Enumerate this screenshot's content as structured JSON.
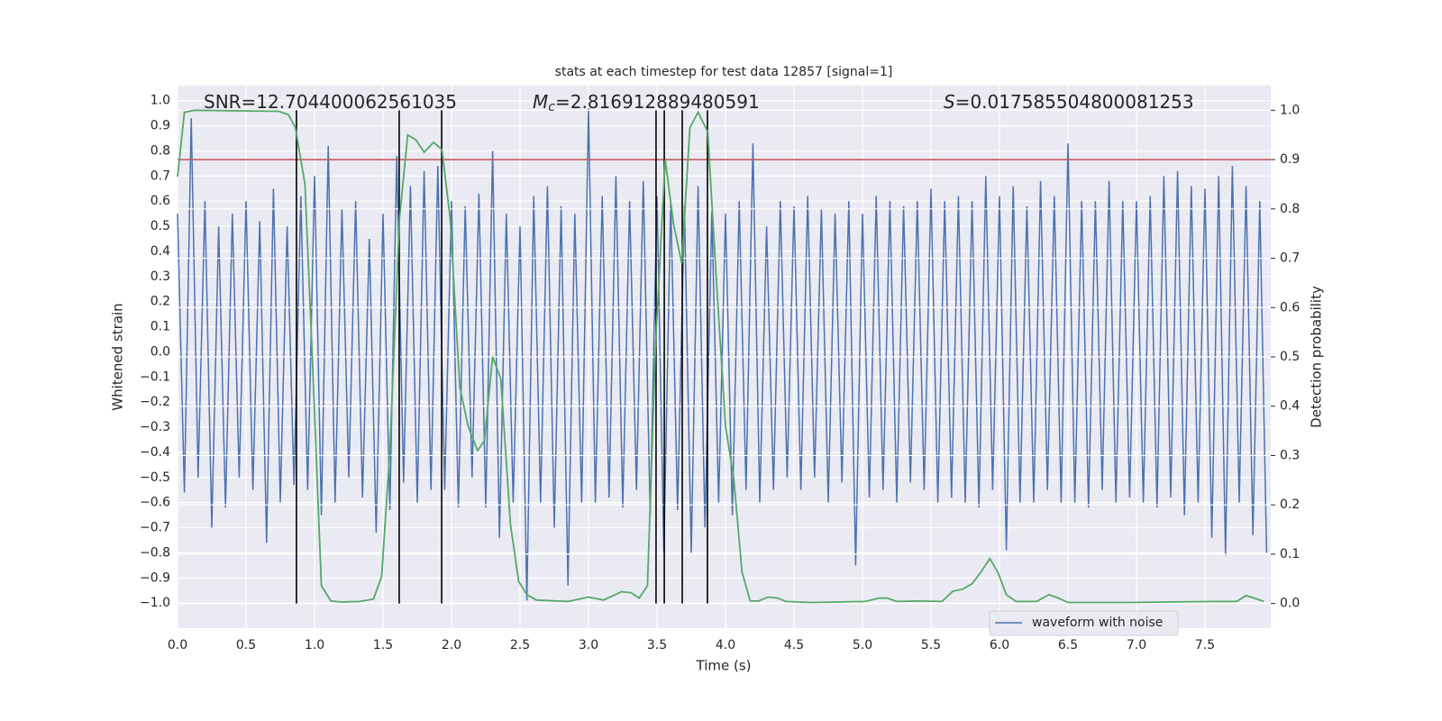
{
  "chart_data": {
    "type": "line",
    "title": "stats at each timestep for test data 12857 [signal=1]",
    "xlabel": "Time (s)",
    "ylabel": "Whitened strain",
    "y2label": "Detection probability",
    "annotations": [
      {
        "text": "SNR=12.704400062561035"
      },
      {
        "symbol": "M",
        "subscript": "c",
        "text": "=2.816912889480591"
      },
      {
        "symbol": "S",
        "text": "=0.017585504800081253"
      }
    ],
    "xlim": [
      0,
      7.98
    ],
    "ylim": [
      -1.1,
      1.06
    ],
    "y2lim": [
      -0.05,
      1.05
    ],
    "xticks": [
      {
        "value": 0,
        "label": "0.0"
      },
      {
        "value": 0.5,
        "label": "0.5"
      },
      {
        "value": 1,
        "label": "1.0"
      },
      {
        "value": 1.5,
        "label": "1.5"
      },
      {
        "value": 2,
        "label": "2.0"
      },
      {
        "value": 2.5,
        "label": "2.5"
      },
      {
        "value": 3,
        "label": "3.0"
      },
      {
        "value": 3.5,
        "label": "3.5"
      },
      {
        "value": 4,
        "label": "4.0"
      },
      {
        "value": 4.5,
        "label": "4.5"
      },
      {
        "value": 5,
        "label": "5.0"
      },
      {
        "value": 5.5,
        "label": "5.5"
      },
      {
        "value": 6,
        "label": "6.0"
      },
      {
        "value": 6.5,
        "label": "6.5"
      },
      {
        "value": 7,
        "label": "7.0"
      },
      {
        "value": 7.5,
        "label": "7.5"
      }
    ],
    "yticks": [
      {
        "value": -1,
        "label": "−1.0"
      },
      {
        "value": -0.9,
        "label": "−0.9"
      },
      {
        "value": -0.8,
        "label": "−0.8"
      },
      {
        "value": -0.7,
        "label": "−0.7"
      },
      {
        "value": -0.6,
        "label": "−0.6"
      },
      {
        "value": -0.5,
        "label": "−0.5"
      },
      {
        "value": -0.4,
        "label": "−0.4"
      },
      {
        "value": -0.3,
        "label": "−0.3"
      },
      {
        "value": -0.2,
        "label": "−0.2"
      },
      {
        "value": -0.1,
        "label": "−0.1"
      },
      {
        "value": 0,
        "label": "0.0"
      },
      {
        "value": 0.1,
        "label": "0.1"
      },
      {
        "value": 0.2,
        "label": "0.2"
      },
      {
        "value": 0.3,
        "label": "0.3"
      },
      {
        "value": 0.4,
        "label": "0.4"
      },
      {
        "value": 0.5,
        "label": "0.5"
      },
      {
        "value": 0.6,
        "label": "0.6"
      },
      {
        "value": 0.7,
        "label": "0.7"
      },
      {
        "value": 0.8,
        "label": "0.8"
      },
      {
        "value": 0.9,
        "label": "0.9"
      },
      {
        "value": 1,
        "label": "1.0"
      }
    ],
    "y2ticks": [
      {
        "value": 0,
        "label": "0.0"
      },
      {
        "value": 0.1,
        "label": "0.1"
      },
      {
        "value": 0.2,
        "label": "0.2"
      },
      {
        "value": 0.3,
        "label": "0.3"
      },
      {
        "value": 0.4,
        "label": "0.4"
      },
      {
        "value": 0.5,
        "label": "0.5"
      },
      {
        "value": 0.6,
        "label": "0.6"
      },
      {
        "value": 0.7,
        "label": "0.7"
      },
      {
        "value": 0.8,
        "label": "0.8"
      },
      {
        "value": 0.9,
        "label": "0.9"
      },
      {
        "value": 1,
        "label": "1.0"
      }
    ],
    "grid": true,
    "series": [
      {
        "name": "waveform with noise",
        "color": "#4c72b0",
        "x": [
          0,
          0.05,
          0.1,
          0.15,
          0.2,
          0.25,
          0.3,
          0.35,
          0.4,
          0.45,
          0.5,
          0.55,
          0.6,
          0.65,
          0.7,
          0.75,
          0.8,
          0.85,
          0.9,
          0.95,
          1,
          1.05,
          1.1,
          1.15,
          1.2,
          1.25,
          1.3,
          1.35,
          1.4,
          1.45,
          1.5,
          1.55,
          1.6,
          1.65,
          1.7,
          1.75,
          1.8,
          1.85,
          1.9,
          1.95,
          2,
          2.05,
          2.1,
          2.15,
          2.2,
          2.25,
          2.3,
          2.35,
          2.4,
          2.45,
          2.5,
          2.55,
          2.6,
          2.65,
          2.7,
          2.75,
          2.8,
          2.85,
          2.9,
          2.95,
          3,
          3.05,
          3.1,
          3.15,
          3.2,
          3.25,
          3.3,
          3.35,
          3.4,
          3.45,
          3.5,
          3.55,
          3.6,
          3.65,
          3.7,
          3.75,
          3.8,
          3.85,
          3.9,
          3.95,
          4,
          4.05,
          4.1,
          4.15,
          4.2,
          4.25,
          4.3,
          4.35,
          4.4,
          4.45,
          4.5,
          4.55,
          4.6,
          4.65,
          4.7,
          4.75,
          4.8,
          4.85,
          4.9,
          4.95,
          5,
          5.05,
          5.1,
          5.15,
          5.2,
          5.25,
          5.3,
          5.35,
          5.4,
          5.45,
          5.5,
          5.55,
          5.6,
          5.65,
          5.7,
          5.75,
          5.8,
          5.85,
          5.9,
          5.95,
          6,
          6.05,
          6.1,
          6.15,
          6.2,
          6.25,
          6.3,
          6.35,
          6.4,
          6.45,
          6.5,
          6.55,
          6.6,
          6.65,
          6.7,
          6.75,
          6.8,
          6.85,
          6.9,
          6.95,
          7,
          7.05,
          7.1,
          7.15,
          7.2,
          7.25,
          7.3,
          7.35,
          7.4,
          7.45,
          7.5,
          7.55,
          7.6,
          7.65,
          7.7,
          7.75,
          7.8,
          7.85,
          7.9,
          7.95
        ],
        "values": [
          0.55,
          -0.56,
          0.93,
          -0.5,
          0.6,
          -0.7,
          0.5,
          -0.62,
          0.55,
          -0.5,
          0.6,
          -0.55,
          0.52,
          -0.76,
          0.65,
          -0.6,
          0.5,
          -0.53,
          0.62,
          -0.55,
          0.7,
          -0.65,
          0.82,
          -0.6,
          0.57,
          -0.5,
          0.6,
          -0.58,
          0.45,
          -0.72,
          0.55,
          -0.63,
          0.78,
          -0.52,
          0.66,
          -0.6,
          0.72,
          -0.55,
          0.74,
          -0.55,
          0.6,
          -0.62,
          0.58,
          -0.5,
          0.63,
          -0.62,
          0.8,
          -0.74,
          0.55,
          -0.6,
          0.5,
          -0.99,
          0.62,
          -0.6,
          0.66,
          -0.7,
          0.58,
          -0.93,
          0.55,
          -0.6,
          0.97,
          -0.6,
          0.62,
          -0.58,
          0.7,
          -0.62,
          0.6,
          -0.55,
          0.68,
          -0.65,
          0.62,
          -0.8,
          0.6,
          -0.63,
          0.58,
          -0.8,
          0.66,
          -0.7,
          0.56,
          -0.6,
          0.55,
          -0.65,
          0.6,
          -0.55,
          0.83,
          -0.6,
          0.5,
          -0.55,
          0.6,
          -0.5,
          0.58,
          -0.55,
          0.62,
          -0.5,
          0.57,
          -0.6,
          0.55,
          -0.52,
          0.6,
          -0.85,
          0.55,
          -0.58,
          0.62,
          -0.55,
          0.6,
          -0.6,
          0.58,
          -0.52,
          0.6,
          -0.55,
          0.65,
          -0.6,
          0.6,
          -0.58,
          0.62,
          -0.6,
          0.6,
          -0.62,
          0.7,
          -0.55,
          0.62,
          -0.79,
          0.66,
          -0.6,
          0.58,
          -0.6,
          0.68,
          -0.55,
          0.62,
          -0.6,
          0.83,
          -0.6,
          0.6,
          -0.62,
          0.6,
          -0.55,
          0.68,
          -0.6,
          0.6,
          -0.58,
          0.6,
          -0.6,
          0.62,
          -0.62,
          0.7,
          -0.58,
          0.72,
          -0.65,
          0.66,
          -0.6,
          0.65,
          -0.74,
          0.7,
          -0.81,
          0.74,
          -0.6,
          0.66,
          -0.73,
          0.6,
          -0.8
        ]
      }
    ],
    "probability": {
      "color": "#55a868",
      "axis": "y2",
      "x": [
        0,
        0.05,
        0.12,
        0.74,
        0.81,
        0.86,
        0.93,
        0.99,
        1.05,
        1.12,
        1.2,
        1.33,
        1.43,
        1.49,
        1.55,
        1.62,
        1.68,
        1.74,
        1.8,
        1.87,
        1.93,
        1.99,
        2.06,
        2.12,
        2.19,
        2.24,
        2.3,
        2.36,
        2.43,
        2.49,
        2.55,
        2.62,
        2.85,
        3.0,
        3.11,
        3.24,
        3.31,
        3.37,
        3.43,
        3.49,
        3.56,
        3.62,
        3.68,
        3.74,
        3.8,
        3.87,
        3.93,
        4.0,
        4.06,
        4.12,
        4.18,
        4.24,
        4.31,
        4.38,
        4.44,
        4.63,
        5.02,
        5.12,
        5.18,
        5.25,
        5.41,
        5.58,
        5.66,
        5.73,
        5.8,
        5.86,
        5.93,
        5.99,
        6.05,
        6.12,
        6.27,
        6.36,
        6.43,
        6.5,
        6.93,
        7.59,
        7.73,
        7.8,
        7.86,
        7.93
      ],
      "values": [
        0.865,
        0.996,
        1.0,
        0.998,
        0.991,
        0.965,
        0.85,
        0.455,
        0.036,
        0.005,
        0.003,
        0.004,
        0.009,
        0.055,
        0.31,
        0.78,
        0.95,
        0.94,
        0.915,
        0.935,
        0.92,
        0.78,
        0.44,
        0.36,
        0.31,
        0.33,
        0.5,
        0.455,
        0.16,
        0.045,
        0.018,
        0.007,
        0.004,
        0.013,
        0.007,
        0.024,
        0.022,
        0.011,
        0.036,
        0.53,
        0.9,
        0.77,
        0.69,
        0.965,
        0.996,
        0.956,
        0.67,
        0.36,
        0.255,
        0.064,
        0.005,
        0.005,
        0.013,
        0.011,
        0.004,
        0.002,
        0.004,
        0.011,
        0.011,
        0.004,
        0.005,
        0.004,
        0.025,
        0.029,
        0.04,
        0.062,
        0.091,
        0.062,
        0.018,
        0.004,
        0.004,
        0.018,
        0.011,
        0.002,
        0.002,
        0.004,
        0.004,
        0.016,
        0.011,
        0.004
      ]
    },
    "threshold": {
      "value": 0.9,
      "axis": "y2",
      "color": "#c44e52"
    },
    "vlines": {
      "x": [
        0.868,
        1.618,
        1.928,
        3.493,
        3.553,
        3.684,
        3.868
      ],
      "ymin": 0,
      "ymax": 1,
      "axis": "y2",
      "color": "#000000"
    },
    "legend": "lower right",
    "background": "#eaeaf2"
  }
}
